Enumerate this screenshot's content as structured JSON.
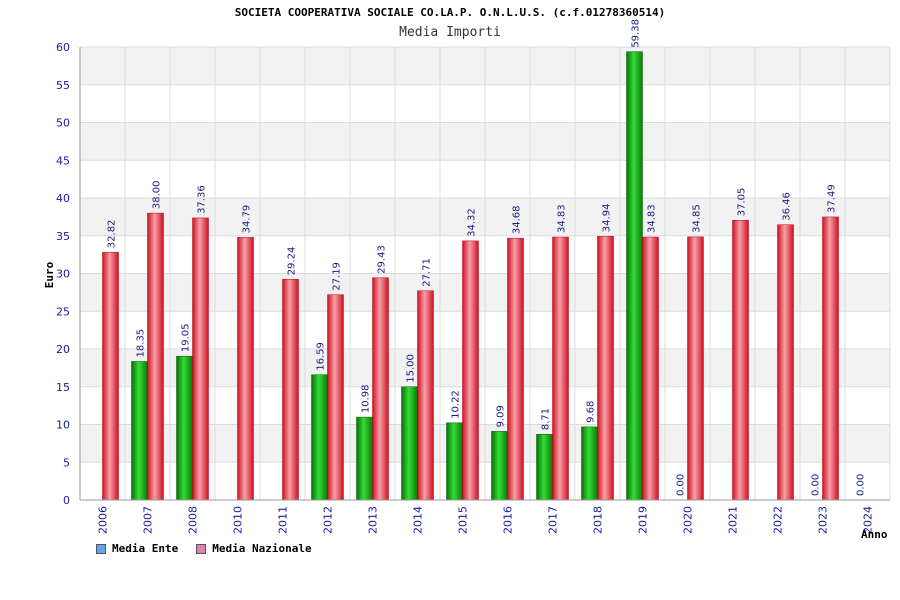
{
  "title": "SOCIETA COOPERATIVA SOCIALE CO.LA.P. O.N.L.U.S. (c.f.01278360514)",
  "subtitle": "Media Importi",
  "chart_data": {
    "type": "bar",
    "categories": [
      "2006",
      "2007",
      "2008",
      "2010",
      "2011",
      "2012",
      "2013",
      "2014",
      "2015",
      "2016",
      "2017",
      "2018",
      "2019",
      "2020",
      "2021",
      "2022",
      "2023",
      "2024"
    ],
    "series": [
      {
        "name": "Media Ente",
        "color": "#22b922",
        "values": [
          null,
          18.35,
          19.05,
          null,
          null,
          16.59,
          10.98,
          15.0,
          10.22,
          9.09,
          8.71,
          9.68,
          59.38,
          0.0,
          null,
          null,
          0.0,
          0.0
        ]
      },
      {
        "name": "Media Nazionale",
        "color": "#e8303a",
        "values": [
          32.82,
          38.0,
          37.36,
          34.79,
          29.24,
          27.19,
          29.43,
          27.71,
          34.32,
          34.68,
          34.83,
          34.94,
          34.83,
          34.85,
          37.05,
          36.46,
          37.49,
          null
        ]
      }
    ],
    "legend_swatch_colors": [
      "#66a3e6",
      "#e680b3"
    ],
    "ylabel": "Euro",
    "xlabel": "Anno",
    "ylim": [
      0,
      60
    ],
    "yticks": [
      0,
      5,
      10,
      15,
      20,
      25,
      30,
      35,
      40,
      45,
      50,
      55,
      60
    ],
    "grid": true,
    "legend": "bottom-left"
  }
}
